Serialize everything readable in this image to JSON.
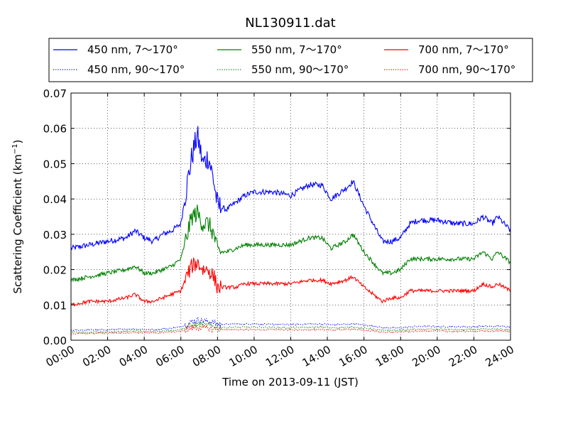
{
  "chart_data": {
    "type": "line",
    "title": "NL130911.dat",
    "xlabel": "Time on 2013-09-11 (JST)",
    "ylabel_main": "Scattering Coefficient (km",
    "ylabel_sup": "−1",
    "ylabel_close": ")",
    "xlim": [
      "00:00",
      "24:00"
    ],
    "ylim": [
      0,
      0.07
    ],
    "grid": true,
    "legend_position": "top, above plot",
    "x_ticks": [
      "00:00",
      "02:00",
      "04:00",
      "06:00",
      "08:00",
      "10:00",
      "12:00",
      "14:00",
      "16:00",
      "18:00",
      "20:00",
      "22:00",
      "24:00"
    ],
    "y_ticks": [
      "0.00",
      "0.01",
      "0.02",
      "0.03",
      "0.04",
      "0.05",
      "0.06",
      "0.07"
    ],
    "x_hours": [
      0,
      1,
      2,
      3,
      3.5,
      4,
      4.5,
      5,
      5.5,
      6,
      6.3,
      6.6,
      6.9,
      7.2,
      7.5,
      7.8,
      8,
      8.5,
      9,
      9.5,
      10,
      11,
      12,
      13,
      13.7,
      14.2,
      15,
      15.4,
      16,
      16.5,
      17,
      17.5,
      18,
      18.5,
      19,
      20,
      21,
      22,
      22.5,
      23,
      23.3,
      24
    ],
    "series": [
      {
        "name": "450 nm, 7～170°",
        "color": "#0000ff",
        "style": "solid",
        "noise": 0.0008,
        "values": [
          0.026,
          0.027,
          0.028,
          0.029,
          0.031,
          0.029,
          0.028,
          0.03,
          0.031,
          0.033,
          0.043,
          0.052,
          0.058,
          0.05,
          0.052,
          0.045,
          0.038,
          0.037,
          0.039,
          0.041,
          0.042,
          0.042,
          0.041,
          0.044,
          0.044,
          0.04,
          0.043,
          0.045,
          0.038,
          0.033,
          0.028,
          0.028,
          0.029,
          0.033,
          0.034,
          0.034,
          0.033,
          0.033,
          0.035,
          0.033,
          0.035,
          0.031
        ]
      },
      {
        "name": "450 nm, 90～170°",
        "color": "#0000ff",
        "style": "dotted",
        "noise": 0.0002,
        "values": [
          0.0028,
          0.0029,
          0.003,
          0.0031,
          0.0032,
          0.0031,
          0.003,
          0.0032,
          0.0034,
          0.0038,
          0.0045,
          0.0052,
          0.0058,
          0.0055,
          0.0053,
          0.005,
          0.0046,
          0.0045,
          0.0046,
          0.0046,
          0.0046,
          0.0045,
          0.0044,
          0.0046,
          0.0046,
          0.0044,
          0.0045,
          0.0047,
          0.0043,
          0.004,
          0.0036,
          0.0035,
          0.0035,
          0.0038,
          0.0039,
          0.0039,
          0.0038,
          0.0038,
          0.004,
          0.0039,
          0.004,
          0.0037
        ]
      },
      {
        "name": "550 nm, 7～170°",
        "color": "#008000",
        "style": "solid",
        "noise": 0.0006,
        "values": [
          0.017,
          0.018,
          0.019,
          0.02,
          0.021,
          0.019,
          0.019,
          0.02,
          0.021,
          0.023,
          0.029,
          0.035,
          0.036,
          0.033,
          0.033,
          0.03,
          0.025,
          0.025,
          0.026,
          0.027,
          0.027,
          0.027,
          0.027,
          0.029,
          0.029,
          0.026,
          0.028,
          0.03,
          0.025,
          0.022,
          0.019,
          0.019,
          0.02,
          0.023,
          0.023,
          0.023,
          0.023,
          0.023,
          0.025,
          0.023,
          0.025,
          0.022
        ]
      },
      {
        "name": "550 nm, 90～170°",
        "color": "#008000",
        "style": "dotted",
        "noise": 0.0002,
        "values": [
          0.0022,
          0.0023,
          0.0024,
          0.0025,
          0.0026,
          0.0025,
          0.0024,
          0.0026,
          0.0028,
          0.003,
          0.0036,
          0.0041,
          0.0045,
          0.0043,
          0.0042,
          0.004,
          0.0037,
          0.0036,
          0.0037,
          0.0037,
          0.0037,
          0.0036,
          0.0035,
          0.0037,
          0.0037,
          0.0035,
          0.0036,
          0.0038,
          0.0034,
          0.0031,
          0.0028,
          0.0028,
          0.0028,
          0.003,
          0.0031,
          0.0031,
          0.003,
          0.003,
          0.0032,
          0.0031,
          0.0032,
          0.0029
        ]
      },
      {
        "name": "700 nm, 7～170°",
        "color": "#ff0000",
        "style": "solid",
        "noise": 0.0005,
        "values": [
          0.01,
          0.011,
          0.011,
          0.012,
          0.013,
          0.011,
          0.011,
          0.012,
          0.013,
          0.014,
          0.018,
          0.021,
          0.022,
          0.02,
          0.02,
          0.018,
          0.015,
          0.015,
          0.015,
          0.016,
          0.016,
          0.016,
          0.016,
          0.017,
          0.017,
          0.016,
          0.017,
          0.018,
          0.015,
          0.013,
          0.011,
          0.012,
          0.012,
          0.014,
          0.014,
          0.014,
          0.014,
          0.014,
          0.016,
          0.015,
          0.016,
          0.014
        ]
      },
      {
        "name": "700 nm, 90～170°",
        "color": "#ff0000",
        "style": "dotted",
        "noise": 0.0002,
        "values": [
          0.0018,
          0.0019,
          0.002,
          0.0021,
          0.0022,
          0.0021,
          0.002,
          0.0022,
          0.0023,
          0.0025,
          0.003,
          0.0034,
          0.0037,
          0.0035,
          0.0034,
          0.0032,
          0.003,
          0.003,
          0.003,
          0.003,
          0.003,
          0.003,
          0.0029,
          0.003,
          0.003,
          0.0029,
          0.003,
          0.0031,
          0.0028,
          0.0026,
          0.0023,
          0.0023,
          0.0023,
          0.0025,
          0.0026,
          0.0026,
          0.0025,
          0.0025,
          0.0027,
          0.0026,
          0.0027,
          0.0024
        ]
      }
    ]
  }
}
